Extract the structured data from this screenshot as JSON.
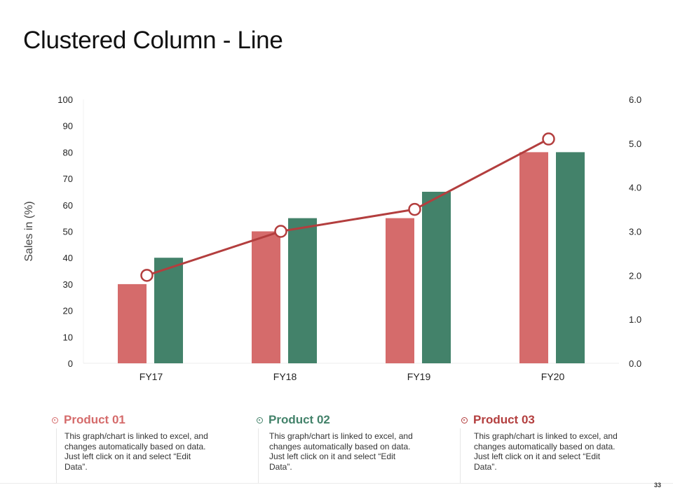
{
  "slide": {
    "title": "Clustered Column - Line",
    "page_number": "33"
  },
  "chart_data": {
    "type": "bar",
    "categories": [
      "FY17",
      "FY18",
      "FY19",
      "FY20"
    ],
    "series": [
      {
        "name": "Product 01",
        "kind": "bar",
        "axis": "left",
        "color": "#d56b6b",
        "values": [
          30,
          50,
          55,
          80
        ]
      },
      {
        "name": "Product 02",
        "kind": "bar",
        "axis": "left",
        "color": "#43826a",
        "values": [
          40,
          55,
          65,
          80
        ]
      },
      {
        "name": "Product 03",
        "kind": "line",
        "axis": "right",
        "color": "#b33e3e",
        "values": [
          2.0,
          3.0,
          3.5,
          5.1
        ]
      }
    ],
    "ylabel": "Sales in (%)",
    "ylim": [
      0,
      100
    ],
    "yticks": [
      "0",
      "10",
      "20",
      "30",
      "40",
      "50",
      "60",
      "70",
      "80",
      "90",
      "100"
    ],
    "y2lim": [
      0,
      6
    ],
    "y2ticks": [
      "0.0",
      "1.0",
      "2.0",
      "3.0",
      "4.0",
      "5.0",
      "6.0"
    ],
    "grid": false,
    "legend": "none"
  },
  "products": [
    {
      "title": "Product 01",
      "color": "#d56b6b",
      "desc": "This graph/chart is linked to excel, and changes automatically based on data. Just left click on it and select “Edit Data”."
    },
    {
      "title": "Product 02",
      "color": "#43826a",
      "desc": "This graph/chart is linked to excel, and changes automatically based on data. Just left click on it and select “Edit Data”."
    },
    {
      "title": "Product 03",
      "color": "#b33e3e",
      "desc": "This graph/chart is linked to excel, and changes automatically based on data. Just left click on it and select “Edit Data”."
    }
  ]
}
